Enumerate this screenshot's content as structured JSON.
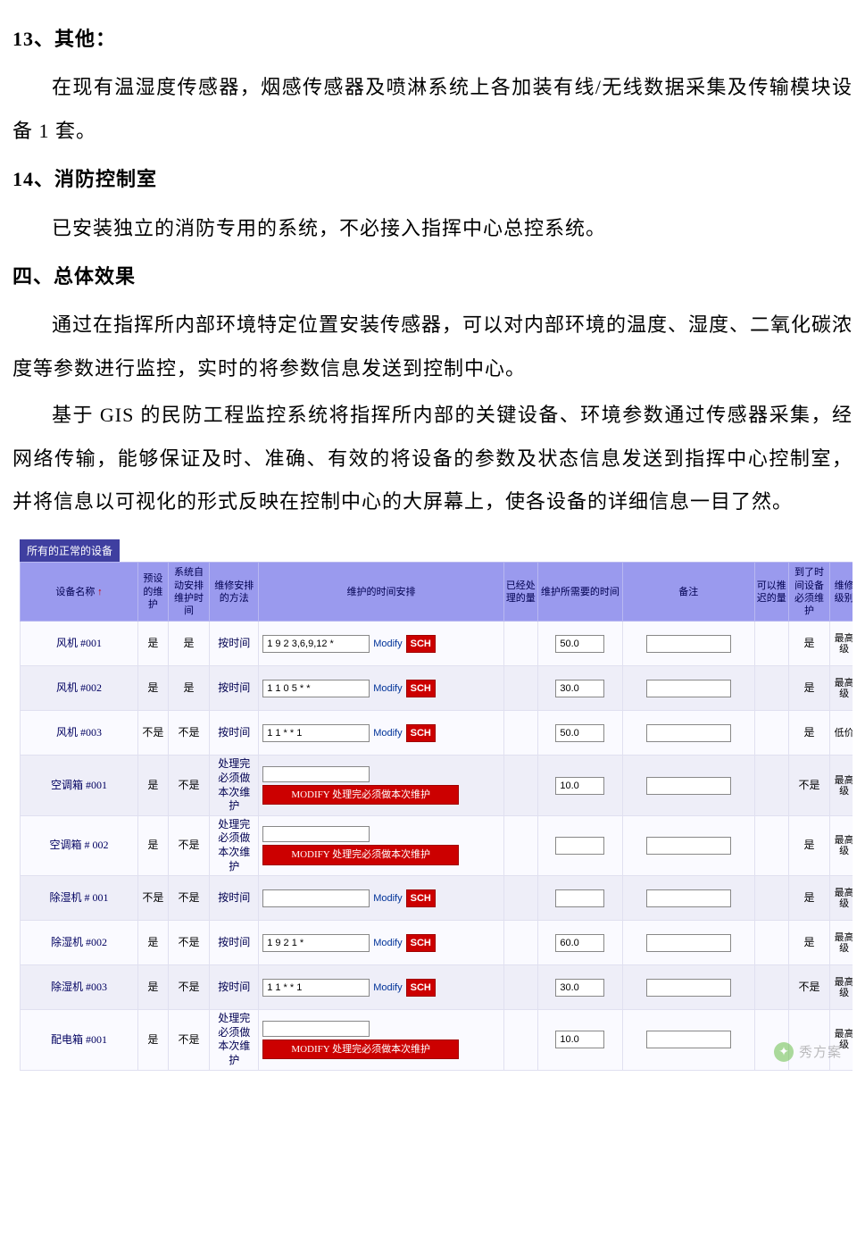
{
  "doc": {
    "h13": "13、其他：",
    "p13": "在现有温湿度传感器，烟感传感器及喷淋系统上各加装有线/无线数据采集及传输模块设备 1 套。",
    "h14": "14、消防控制室",
    "p14": "已安装独立的消防专用的系统，不必接入指挥中心总控系统。",
    "h4": "四、总体效果",
    "p4a": "通过在指挥所内部环境特定位置安装传感器，可以对内部环境的温度、湿度、二氧化碳浓度等参数进行监控，实时的将参数信息发送到控制中心。",
    "p4b": "基于 GIS 的民防工程监控系统将指挥所内部的关键设备、环境参数通过传感器采集，经网络传输，能够保证及时、准确、有效的将设备的参数及状态信息发送到指挥中心控制室，并将信息以可视化的形式反映在控制中心的大屏幕上，使各设备的详细信息一目了然。"
  },
  "table": {
    "tab_label": "所有的正常的设备",
    "sort_arrow": "↑",
    "columns": {
      "c1": "设备名称",
      "c2": "预设的维护",
      "c3": "系统自动安排维护时间",
      "c4": "维修安排的方法",
      "c5": "维护的时间安排",
      "c6": "已经处理的量",
      "c7": "维护所需要的时间",
      "c8": "备注",
      "c9": "可以推迟的量",
      "c10": "到了时间设备必须维护",
      "c11": "维修级别"
    },
    "col_widths": {
      "c1": 125,
      "c2": 32,
      "c3": 44,
      "c4": 52,
      "c5": 260,
      "c6": 36,
      "c7": 90,
      "c8": 140,
      "c9": 36,
      "c10": 44,
      "c11": 30
    },
    "header_bg": "#9a9aee",
    "header_fg": "#000050",
    "tab_bg": "#3f3fa0",
    "row_even_bg": "#fafaff",
    "row_odd_bg": "#eeeef8",
    "modify_label": "Modify",
    "sch_label": "SCH",
    "red_bar_label": "MODIFY 处理完必须做本次维护",
    "red_color": "#cc0000",
    "rows": [
      {
        "name": "风机 #001",
        "preset": "是",
        "auto": "是",
        "method": "按时间",
        "sched_type": "input",
        "sched_value": "1 9 2 3,6,9,12 *",
        "time": "50.0",
        "must": "是",
        "level": "最高级",
        "odd": false
      },
      {
        "name": "风机 #002",
        "preset": "是",
        "auto": "是",
        "method": "按时间",
        "sched_type": "input",
        "sched_value": "1 1 0 5 * *",
        "time": "30.0",
        "must": "是",
        "level": "最高级",
        "odd": true
      },
      {
        "name": "风机 #003",
        "preset": "不是",
        "auto": "不是",
        "method": "按时间",
        "sched_type": "input",
        "sched_value": "1 1 * * 1",
        "time": "50.0",
        "must": "是",
        "level": "低价",
        "odd": false
      },
      {
        "name": "空调箱 #001",
        "preset": "是",
        "auto": "不是",
        "method": "处理完必须做本次维护",
        "sched_type": "bar",
        "sched_value": "",
        "time": "10.0",
        "must": "不是",
        "level": "最高级",
        "odd": true
      },
      {
        "name": "空调箱 # 002",
        "preset": "是",
        "auto": "不是",
        "method": "处理完必须做本次维护",
        "sched_type": "bar",
        "sched_value": "",
        "time": "",
        "must": "是",
        "level": "最高级",
        "odd": false
      },
      {
        "name": "除湿机 # 001",
        "preset": "不是",
        "auto": "不是",
        "method": "按时间",
        "sched_type": "input",
        "sched_value": "",
        "time": "",
        "must": "是",
        "level": "最高级",
        "odd": true
      },
      {
        "name": "除湿机 #002",
        "preset": "是",
        "auto": "不是",
        "method": "按时间",
        "sched_type": "input",
        "sched_value": "1 9 2 1 *",
        "time": "60.0",
        "must": "是",
        "level": "最高级",
        "odd": false
      },
      {
        "name": "除湿机 #003",
        "preset": "是",
        "auto": "不是",
        "method": "按时间",
        "sched_type": "input",
        "sched_value": "1 1 * * 1",
        "time": "30.0",
        "must": "不是",
        "level": "最高级",
        "odd": true
      },
      {
        "name": "配电箱 #001",
        "preset": "是",
        "auto": "不是",
        "method": "处理完必须做本次维护",
        "sched_type": "bar",
        "sched_value": "",
        "time": "10.0",
        "must": "",
        "level": "最高级",
        "odd": false
      }
    ]
  },
  "watermark": {
    "text": "秀方案"
  }
}
